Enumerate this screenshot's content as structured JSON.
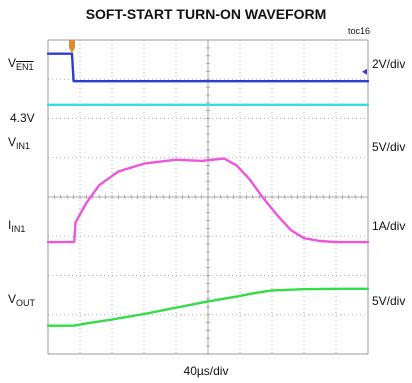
{
  "title": "SOFT-START TURN-ON WAVEFORM",
  "toc": "toc16",
  "labels": {
    "ven_main": "V",
    "ven_sub": "EN1",
    "level_4v3": "4.3V",
    "vin_main": "V",
    "vin_sub": "IN1",
    "iin_main": "I",
    "iin_sub": "IN1",
    "vout_main": "V",
    "vout_sub": "OUT"
  },
  "scales": {
    "ven": "2V/div",
    "vin": "5V/div",
    "iin": "1A/div",
    "vout": "5V/div"
  },
  "x_scale": "40µs/div",
  "colors": {
    "ven": "#2a3fcf",
    "vin": "#33e0e0",
    "iin": "#ee55dd",
    "vout": "#33dd44",
    "grid": "#9a9a9a",
    "trigger": "#e08a30"
  },
  "chart_data": {
    "type": "line",
    "title": "SOFT-START TURN-ON WAVEFORM",
    "xlabel": "40µs/div",
    "x_divisions": 10,
    "y_divisions": 8,
    "grid": true,
    "series": [
      {
        "name": "V_EN1",
        "scale": "2V/div",
        "x": [
          0,
          0.75,
          0.8,
          10
        ],
        "y": [
          7.65,
          7.65,
          6.95,
          6.95
        ]
      },
      {
        "name": "V_IN1",
        "scale": "5V/div",
        "x": [
          0,
          10
        ],
        "y": [
          6.35,
          6.35
        ]
      },
      {
        "name": "I_IN1",
        "scale": "1A/div",
        "x": [
          0,
          0.82,
          0.86,
          1.2,
          1.6,
          2.2,
          3.0,
          4.0,
          4.8,
          5.5,
          5.9,
          6.3,
          6.7,
          7.2,
          7.6,
          8.0,
          8.5,
          9.0,
          9.5,
          10
        ],
        "y": [
          2.85,
          2.85,
          3.35,
          3.85,
          4.3,
          4.65,
          4.85,
          4.95,
          4.92,
          4.98,
          4.8,
          4.45,
          4.0,
          3.5,
          3.15,
          2.95,
          2.88,
          2.85,
          2.85,
          2.85
        ]
      },
      {
        "name": "V_OUT",
        "scale": "5V/div",
        "x": [
          0,
          0.8,
          1.2,
          2.0,
          3.0,
          4.0,
          5.0,
          6.0,
          6.5,
          7.0,
          8.0,
          9.0,
          10
        ],
        "y": [
          0.72,
          0.72,
          0.78,
          0.88,
          1.02,
          1.18,
          1.34,
          1.48,
          1.56,
          1.62,
          1.65,
          1.66,
          1.66
        ]
      }
    ]
  }
}
